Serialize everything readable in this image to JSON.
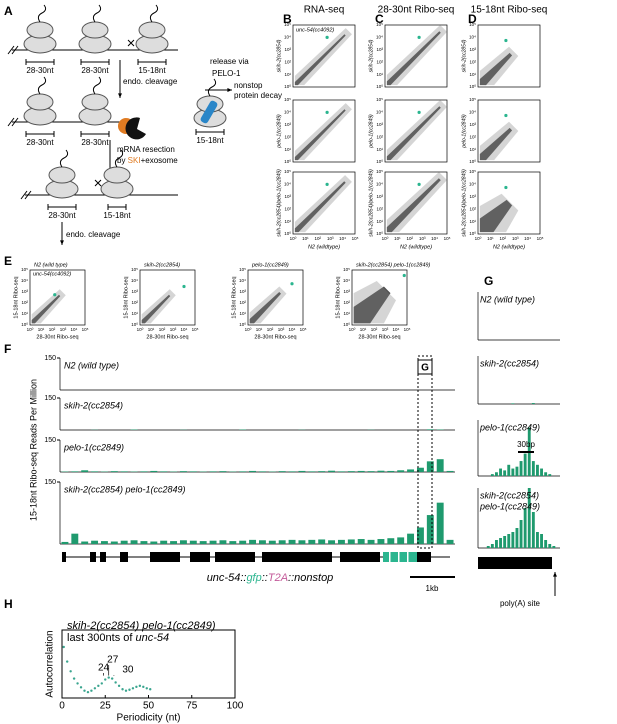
{
  "A": {
    "label": "A",
    "row1": [
      "28-30nt",
      "28-30nt",
      "15-18nt"
    ],
    "cleavage1": "endo. cleavage",
    "release": "release via",
    "pelo": "PELO-1",
    "decay1": "nonstop",
    "decay2": "protein decay",
    "side": "15-18nt",
    "row2": [
      "28-30nt",
      "28-30nt"
    ],
    "resection": "mRNA resection",
    "by": "by ",
    "ski": "SKI",
    "exo": "+exosome",
    "row3": [
      "28-30nt",
      "15-18nt"
    ],
    "cleavage2": "endo. cleavage"
  },
  "grid": {
    "labels": [
      "B",
      "C",
      "D"
    ],
    "titles": [
      "RNA-seq",
      "28-30nt Ribo-seq",
      "15-18nt Ribo-seq"
    ],
    "row_labels": [
      "skih-2(cc2854)",
      "pelo-1(cc2849)",
      "skih-2(cc2854)/pelo-1(cc2849)"
    ],
    "x_label": "N2 (wildtype)",
    "ticks": [
      "10⁰",
      "10¹",
      "10²",
      "10³",
      "10⁴",
      "10⁵"
    ],
    "highlight": "unc-54(cc4092)"
  },
  "E": {
    "label": "E",
    "titles": [
      "N2 (wild type)",
      "skih-2(cc2854)",
      "pelo-1(cc2849)",
      "skih-2(cc2854) pelo-1(cc2849)"
    ],
    "highlight": "unc-54(cc4092)",
    "y_label": "15-18nt Ribo-seq",
    "x_label": "28-30nt Ribo-seq"
  },
  "F": {
    "label": "F",
    "y_label": "15-18nt Ribo-seq Reads Per Million",
    "ylim": [
      0,
      150
    ],
    "yticks": [
      150
    ],
    "zoom": "G",
    "gene": [
      "unc-54::",
      "gfp",
      "::",
      "T2A",
      "::nonstop"
    ],
    "scale": "1kb",
    "tracks": [
      {
        "name": "N2 (wild type)",
        "values": [
          0,
          0,
          0,
          0,
          0,
          0,
          0,
          0,
          0,
          0,
          0,
          0,
          0,
          0,
          0,
          0,
          0,
          0,
          0,
          0,
          0,
          0,
          0,
          0,
          0,
          0,
          0,
          0,
          0,
          0,
          0,
          0,
          0,
          0,
          0,
          0,
          0,
          0,
          0,
          0
        ]
      },
      {
        "name": "skih-2(cc2854)",
        "values": [
          0,
          0,
          0,
          1,
          0,
          0,
          0,
          2,
          0,
          0,
          0,
          0,
          1,
          0,
          0,
          0,
          0,
          0,
          2,
          0,
          0,
          0,
          0,
          0,
          1,
          0,
          0,
          0,
          0,
          0,
          0,
          1,
          0,
          0,
          0,
          0,
          0,
          3,
          2,
          0
        ]
      },
      {
        "name": "pelo-1(cc2849)",
        "values": [
          2,
          3,
          8,
          3,
          2,
          4,
          3,
          2,
          3,
          5,
          3,
          2,
          4,
          3,
          2,
          3,
          4,
          2,
          3,
          5,
          3,
          2,
          4,
          3,
          5,
          3,
          4,
          6,
          3,
          4,
          5,
          4,
          6,
          5,
          8,
          12,
          20,
          50,
          60,
          5
        ]
      },
      {
        "name": "skih-2(cc2854) pelo-1(cc2849)",
        "values": [
          5,
          25,
          6,
          8,
          7,
          6,
          8,
          9,
          7,
          6,
          8,
          7,
          9,
          8,
          7,
          8,
          9,
          7,
          8,
          10,
          9,
          8,
          9,
          10,
          9,
          10,
          11,
          9,
          10,
          11,
          12,
          10,
          12,
          14,
          16,
          25,
          40,
          70,
          100,
          10
        ]
      }
    ]
  },
  "G": {
    "label": "G",
    "ylim": [
      0,
      150
    ],
    "scale": "30bp",
    "site": "poly(A) site",
    "tracks": [
      {
        "name": [
          "N2 (wild type)"
        ],
        "values": [
          0,
          0,
          0,
          0,
          0,
          0,
          0,
          0,
          0,
          0,
          0,
          0,
          0,
          0,
          0,
          0,
          0,
          0,
          0,
          0
        ]
      },
      {
        "name": [
          "skih-2(cc2854)"
        ],
        "values": [
          0,
          0,
          0,
          0,
          0,
          0,
          0,
          0,
          2,
          0,
          0,
          0,
          0,
          3,
          0,
          0,
          0,
          0,
          0,
          0
        ]
      },
      {
        "name": [
          "pelo-1(cc2849)"
        ],
        "values": [
          0,
          0,
          0,
          5,
          10,
          20,
          15,
          30,
          20,
          25,
          40,
          60,
          130,
          40,
          30,
          20,
          10,
          5,
          0,
          0
        ]
      },
      {
        "name": [
          "skih-2(cc2854)",
          "pelo-1(cc2849)"
        ],
        "values": [
          0,
          0,
          5,
          10,
          20,
          25,
          30,
          35,
          40,
          50,
          70,
          100,
          150,
          90,
          40,
          35,
          20,
          10,
          5,
          0
        ]
      }
    ]
  },
  "H": {
    "type": "scatter",
    "label": "H",
    "title": "skih-2(cc2854) pelo-1(cc2849)",
    "subtitle": "last 300nts of ",
    "subtitle_gene": "unc-54",
    "annotations": [
      24,
      27,
      30
    ],
    "x_label": "Periodicity (nt)",
    "y_label": "Autocorrelation",
    "color": "#3aa58f",
    "xlim": [
      0,
      100
    ],
    "xticks": [
      0,
      25,
      50,
      75,
      100
    ],
    "ylim": [
      -0.2,
      1.2
    ],
    "x": [
      1,
      3,
      5,
      7,
      9,
      11,
      13,
      15,
      17,
      19,
      21,
      23,
      25,
      27,
      29,
      31,
      33,
      35,
      37,
      39,
      41,
      43,
      45,
      47,
      49,
      51
    ],
    "values": [
      0.85,
      0.55,
      0.35,
      0.2,
      0.1,
      0.02,
      -0.05,
      -0.08,
      -0.05,
      0.0,
      0.05,
      0.1,
      0.18,
      0.22,
      0.2,
      0.12,
      0.05,
      -0.02,
      -0.05,
      -0.03,
      0.0,
      0.03,
      0.05,
      0.03,
      0.0,
      -0.02
    ]
  }
}
